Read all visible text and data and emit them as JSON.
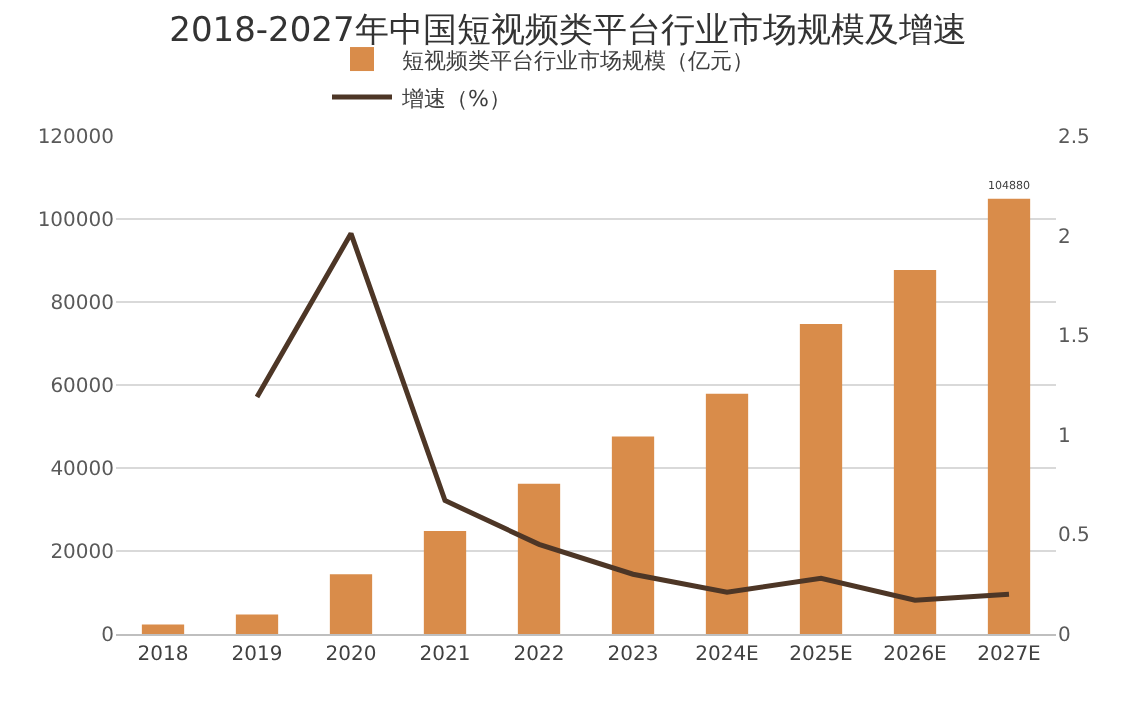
{
  "chart_data": {
    "type": "bar",
    "title": "2018-2027年中国短视频类平台行业市场规模及增速",
    "categories": [
      "2018",
      "2019",
      "2020",
      "2021",
      "2022",
      "2023",
      "2024E",
      "2025E",
      "2026E",
      "2027E"
    ],
    "series": [
      {
        "name": "短视频类平台行业市场规模（亿元）",
        "color": "#d98c4a",
        "values": [
          2300,
          4700,
          14400,
          24800,
          36200,
          47600,
          57900,
          74700,
          87700,
          104880
        ],
        "value_labels": [
          null,
          null,
          null,
          null,
          null,
          null,
          null,
          null,
          null,
          "104880"
        ]
      },
      {
        "name": "增速（%）",
        "type": "line",
        "axis": "y2",
        "color": "#4d3626",
        "values": [
          null,
          1.19,
          2.01,
          0.67,
          0.45,
          0.3,
          0.21,
          0.28,
          0.17,
          0.2
        ],
        "marker": "none"
      }
    ],
    "ylim": [
      0,
      120000
    ],
    "yticks": [
      0,
      20000,
      40000,
      60000,
      80000,
      100000,
      120000
    ],
    "y2lim": [
      0,
      2.5
    ],
    "y2ticks": [
      0,
      0.5,
      1,
      1.5,
      2,
      2.5
    ],
    "grid": "y",
    "legend": "top"
  }
}
